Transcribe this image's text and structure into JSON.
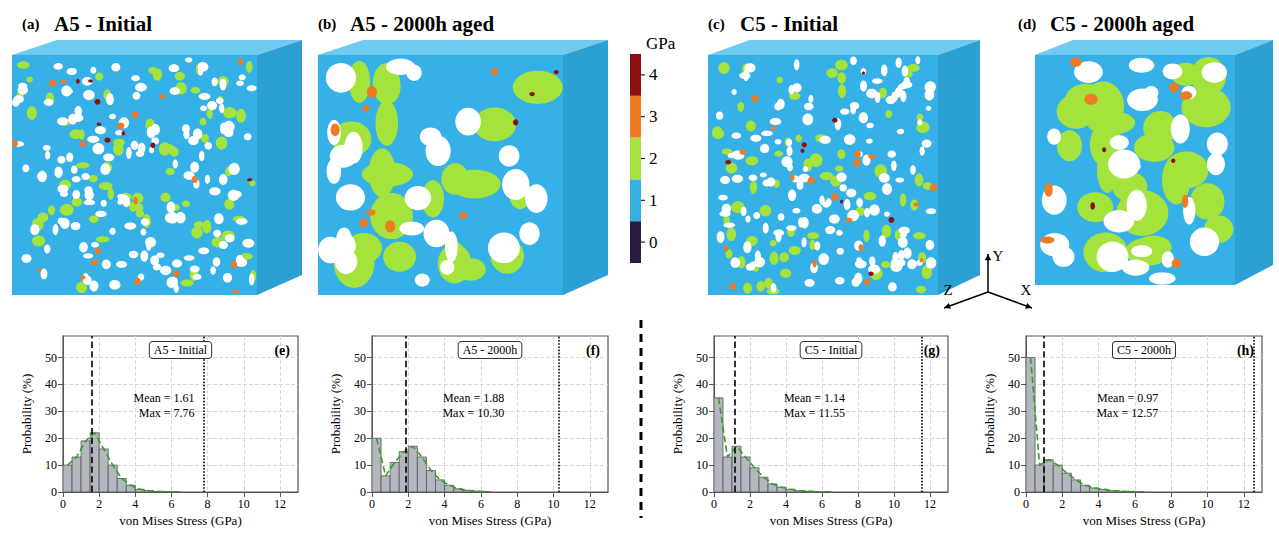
{
  "chart_data": [
    {
      "type": "histogram",
      "panel": "(e)",
      "title": "A5 - Initial",
      "x_label": "von Mises Stress (GPa)",
      "y_label": "Probability (%)",
      "bins": [
        0,
        0.5,
        1,
        1.5,
        2,
        2.5,
        3,
        3.5,
        4,
        4.5,
        5,
        5.5,
        6,
        6.5
      ],
      "counts": [
        10,
        13,
        19,
        22,
        16,
        10,
        5,
        2.5,
        1,
        0.5,
        0.2,
        0.1,
        0
      ],
      "color": "#b3b8be",
      "mean": 1.61,
      "mean_label": "Mean = 1.61",
      "max": 7.76,
      "max_label": "Max = 7.76",
      "xlim": [
        0,
        13
      ],
      "xticks": [
        0,
        2,
        4,
        6,
        8,
        10,
        12
      ],
      "ylim": [
        0,
        58
      ],
      "yticks": [
        0,
        10,
        20,
        30,
        40,
        50
      ],
      "grid": true
    },
    {
      "type": "histogram",
      "panel": "(f)",
      "title": "A5 - 2000h",
      "x_label": "von Mises Stress (GPa)",
      "y_label": "Probability (%)",
      "bins": [
        0,
        0.5,
        1,
        1.5,
        2,
        2.5,
        3,
        3.5,
        4,
        4.5,
        5,
        5.5,
        6,
        6.5
      ],
      "counts": [
        20,
        6,
        11,
        15,
        17,
        13,
        8,
        4.5,
        2.5,
        1.2,
        0.6,
        0.3,
        0.1
      ],
      "color": "#b3b8be",
      "mean": 1.88,
      "mean_label": "Mean = 1.88",
      "max": 10.3,
      "max_label": "Max = 10.30",
      "xlim": [
        0,
        13
      ],
      "xticks": [
        0,
        2,
        4,
        6,
        8,
        10,
        12
      ],
      "ylim": [
        0,
        58
      ],
      "yticks": [
        0,
        10,
        20,
        30,
        40,
        50
      ],
      "grid": true
    },
    {
      "type": "histogram",
      "panel": "(g)",
      "title": "C5 - Initial",
      "x_label": "von Mises Stress (GPa)",
      "y_label": "Probability (%)",
      "bins": [
        0,
        0.5,
        1,
        1.5,
        2,
        2.5,
        3,
        3.5,
        4,
        4.5,
        5,
        5.5,
        6,
        6.5
      ],
      "counts": [
        35,
        13,
        17,
        13,
        9,
        5.5,
        3,
        1.8,
        1,
        0.5,
        0.3,
        0.1,
        0.1
      ],
      "color": "#b3b8be",
      "mean": 1.14,
      "mean_label": "Mean = 1.14",
      "max": 11.55,
      "max_label": "Max = 11.55",
      "xlim": [
        0,
        13
      ],
      "xticks": [
        0,
        2,
        4,
        6,
        8,
        10,
        12
      ],
      "ylim": [
        0,
        58
      ],
      "yticks": [
        0,
        10,
        20,
        30,
        40,
        50
      ],
      "grid": true
    },
    {
      "type": "histogram",
      "panel": "(h)",
      "title": "C5 - 2000h",
      "x_label": "von Mises Stress (GPa)",
      "y_label": "Probability (%)",
      "bins": [
        0,
        0.5,
        1,
        1.5,
        2,
        2.5,
        3,
        3.5,
        4,
        4.5,
        5,
        5.5,
        6,
        6.5
      ],
      "counts": [
        50,
        10,
        12,
        10,
        7,
        4.5,
        2.5,
        1.5,
        1,
        0.5,
        0.3,
        0.2,
        0.1
      ],
      "color": "#b3b8be",
      "mean": 0.97,
      "mean_label": "Mean = 0.97",
      "max": 12.57,
      "max_label": "Max = 12.57",
      "xlim": [
        0,
        13
      ],
      "xticks": [
        0,
        2,
        4,
        6,
        8,
        10,
        12
      ],
      "ylim": [
        0,
        58
      ],
      "yticks": [
        0,
        10,
        20,
        30,
        40,
        50
      ],
      "grid": true
    }
  ],
  "renders": [
    {
      "panel": "(a)",
      "title": "A5 - Initial"
    },
    {
      "panel": "(b)",
      "title": "A5 - 2000h aged"
    },
    {
      "panel": "(c)",
      "title": "C5 - Initial"
    },
    {
      "panel": "(d)",
      "title": "C5 - 2000h aged"
    }
  ],
  "colorbar": {
    "label": "GPa",
    "range": [
      -0.5,
      4.5
    ],
    "ticks": [
      0,
      1,
      2,
      3,
      4
    ],
    "colors": [
      "#2b1b40",
      "#35b1e8",
      "#a4e33c",
      "#f07b25",
      "#8c1010"
    ]
  },
  "axes": [
    "Y",
    "Z",
    "X"
  ]
}
